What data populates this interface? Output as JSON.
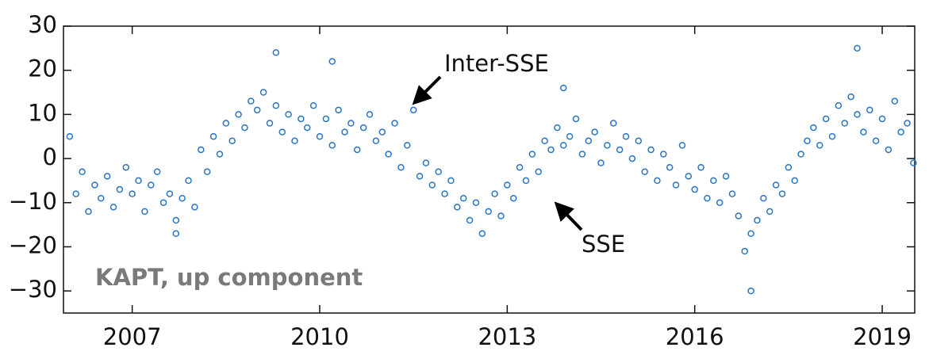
{
  "chart_data": {
    "type": "scatter",
    "annotations": [
      "Inter-SSE",
      "SSE",
      "KAPT, up component"
    ],
    "xlim": [
      2005.9,
      2019.52
    ],
    "xticks": [
      2007,
      2010,
      2013,
      2016,
      2019
    ],
    "ylim": [
      -35,
      30
    ],
    "yticks": [
      30,
      20,
      10,
      0,
      {
        "value": -10,
        "label": "−10"
      },
      {
        "value": -20,
        "label": "−20"
      },
      {
        "value": -30,
        "label": "−30"
      }
    ],
    "series": [
      {
        "color": "#2a74c0",
        "x": [
          2006.0,
          2006.1,
          2006.2,
          2006.3,
          2006.4,
          2006.5,
          2006.6,
          2006.7,
          2006.8,
          2006.9,
          2007.0,
          2007.1,
          2007.2,
          2007.3,
          2007.4,
          2007.5,
          2007.6,
          2007.7,
          2007.8,
          2007.9,
          2008.0,
          2008.1,
          2008.2,
          2008.3,
          2008.4,
          2008.5,
          2008.6,
          2008.7,
          2008.8,
          2008.9,
          2009.0,
          2009.1,
          2009.2,
          2009.3,
          2009.4,
          2009.5,
          2009.6,
          2009.7,
          2009.8,
          2009.9,
          2010.0,
          2010.1,
          2010.2,
          2010.3,
          2010.4,
          2010.5,
          2010.6,
          2010.7,
          2010.8,
          2010.9,
          2011.0,
          2011.1,
          2011.2,
          2011.3,
          2011.4,
          2011.5,
          2011.6,
          2011.7,
          2011.8,
          2011.9,
          2012.0,
          2012.1,
          2012.2,
          2012.3,
          2012.4,
          2012.5,
          2012.6,
          2012.7,
          2012.8,
          2012.9,
          2013.0,
          2013.1,
          2013.2,
          2013.3,
          2013.4,
          2013.5,
          2013.6,
          2013.7,
          2013.8,
          2013.9,
          2014.0,
          2014.1,
          2014.2,
          2014.3,
          2014.4,
          2014.5,
          2014.6,
          2014.7,
          2014.8,
          2014.9,
          2015.0,
          2015.1,
          2015.2,
          2015.3,
          2015.4,
          2015.5,
          2015.6,
          2015.7,
          2015.8,
          2015.9,
          2016.0,
          2016.1,
          2016.2,
          2016.3,
          2016.4,
          2016.5,
          2016.6,
          2016.7,
          2016.8,
          2016.9,
          2017.0,
          2017.1,
          2017.2,
          2017.3,
          2017.4,
          2017.5,
          2017.6,
          2017.7,
          2017.8,
          2017.9,
          2018.0,
          2018.1,
          2018.2,
          2018.3,
          2018.4,
          2018.5,
          2018.6,
          2018.7,
          2018.8,
          2018.9,
          2019.0,
          2019.1,
          2019.2,
          2019.3,
          2019.4,
          2019.5,
          2009.3,
          2010.2,
          2013.9,
          2016.9,
          2018.6,
          2007.7
        ],
        "values": [
          5,
          -8,
          -3,
          -12,
          -6,
          -9,
          -4,
          -11,
          -7,
          -2,
          -8,
          -5,
          -12,
          -6,
          -3,
          -10,
          -8,
          -14,
          -9,
          -5,
          -11,
          2,
          -3,
          5,
          1,
          8,
          4,
          10,
          7,
          13,
          11,
          15,
          8,
          12,
          6,
          10,
          4,
          9,
          7,
          12,
          5,
          9,
          3,
          11,
          6,
          8,
          2,
          7,
          10,
          4,
          6,
          1,
          8,
          -2,
          3,
          11,
          -4,
          -1,
          -6,
          -3,
          -8,
          -5,
          -11,
          -9,
          -14,
          -10,
          -17,
          -12,
          -8,
          -13,
          -6,
          -9,
          -2,
          -5,
          1,
          -3,
          4,
          2,
          7,
          3,
          5,
          9,
          1,
          4,
          6,
          -1,
          3,
          8,
          2,
          5,
          0,
          4,
          -3,
          2,
          -5,
          1,
          -2,
          -6,
          3,
          -4,
          -7,
          -2,
          -9,
          -5,
          -10,
          -4,
          -8,
          -13,
          -21,
          -17,
          -14,
          -9,
          -12,
          -6,
          -8,
          -2,
          -5,
          1,
          4,
          7,
          3,
          9,
          5,
          12,
          8,
          14,
          10,
          6,
          11,
          4,
          9,
          2,
          13,
          6,
          8,
          -1,
          24,
          22,
          16,
          -30,
          25,
          -17
        ]
      }
    ]
  }
}
